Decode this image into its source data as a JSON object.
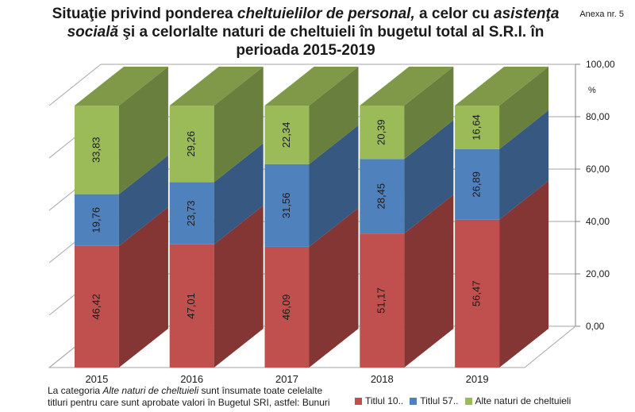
{
  "title": {
    "part1": "Situaţie privind ponderea ",
    "part2_italic": "cheltuielilor de personal,",
    "part3": " a celor cu ",
    "part4_italic": "asistenţa socială",
    "part5": " şi a celorlalte naturi de cheltuieli în bugetul total al S.R.I. în perioada 2015-2019"
  },
  "annex": "Anexa nr. 5",
  "note": {
    "part1": "La categoria ",
    "italic": "Alte naturi de cheltuieli",
    "part2": " sunt însumate toate celelalte titluri pentru care sunt aprobate valori în Bugetul SRI, astfel: Bunuri"
  },
  "colors": {
    "series1": "#c0504d",
    "series2": "#4f81bd",
    "series3": "#9bbb59"
  },
  "chart_data": {
    "type": "bar",
    "stacked": true,
    "categories": [
      "2015",
      "2016",
      "2017",
      "2018",
      "2019"
    ],
    "series": [
      {
        "name": "Titlul 10..",
        "values": [
          46.42,
          47.01,
          46.09,
          51.17,
          56.47
        ],
        "labels": [
          "46,42",
          "47,01",
          "46,09",
          "51,17",
          "56,47"
        ]
      },
      {
        "name": "Titlul 57..",
        "values": [
          19.76,
          23.73,
          31.56,
          28.45,
          26.89
        ],
        "labels": [
          "19,76",
          "23,73",
          "31,56",
          "28,45",
          "26,89"
        ]
      },
      {
        "name": "Alte naturi de cheltuieli",
        "values": [
          33.83,
          29.26,
          22.34,
          20.39,
          16.64
        ],
        "labels": [
          "33,83",
          "29,26",
          "22,34",
          "20,39",
          "16,64"
        ]
      }
    ],
    "yunit": "%",
    "ylim": [
      0,
      100
    ],
    "yticks": [
      "0,00",
      "20,00",
      "40,00",
      "60,00",
      "80,00",
      "100,00"
    ],
    "legend_position": "bottom-right"
  }
}
